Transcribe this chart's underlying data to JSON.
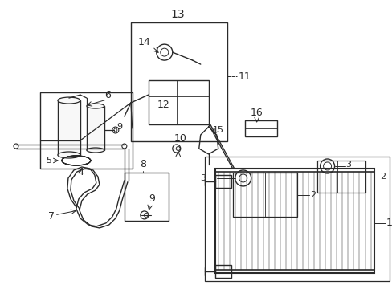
{
  "bg_color": "#ffffff",
  "line_color": "#2a2a2a",
  "fig_width": 4.89,
  "fig_height": 3.6,
  "dpi": 100,
  "label_fs": 8,
  "lw": 0.9
}
